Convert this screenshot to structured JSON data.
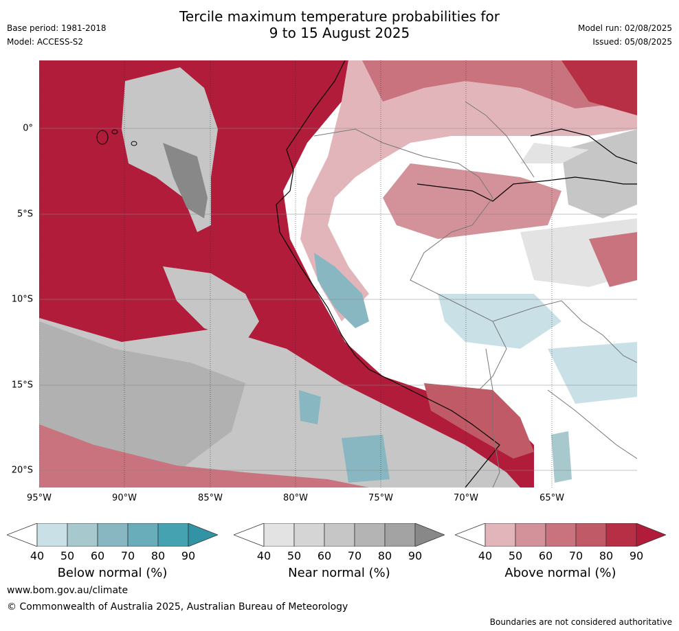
{
  "header": {
    "title_line1": "Tercile maximum temperature probabilities for",
    "title_line2": "9 to 15 August 2025",
    "base_period": "Base period: 1981-2018",
    "model": "Model: ACCESS-S2",
    "model_run": "Model run: 02/08/2025",
    "issued": "Issued: 05/08/2025"
  },
  "map": {
    "lat_labels": [
      "0°",
      "5°S",
      "10°S",
      "15°S",
      "20°S"
    ],
    "lon_labels": [
      "95°W",
      "90°W",
      "85°W",
      "80°W",
      "75°W",
      "70°W",
      "65°W"
    ]
  },
  "legends": [
    {
      "label": "Below normal (%)",
      "ticks": [
        "40",
        "50",
        "60",
        "70",
        "80",
        "90"
      ],
      "colors": [
        "#ffffff",
        "#c9e1e6",
        "#a7c9cd",
        "#88b7c1",
        "#6aadba",
        "#45a2b1",
        "#3193a4"
      ]
    },
    {
      "label": "Near normal (%)",
      "ticks": [
        "40",
        "50",
        "60",
        "70",
        "80",
        "90"
      ],
      "colors": [
        "#ffffff",
        "#e3e3e3",
        "#d5d5d5",
        "#c6c6c6",
        "#b4b4b4",
        "#a3a3a3",
        "#888888"
      ]
    },
    {
      "label": "Above normal (%)",
      "ticks": [
        "40",
        "50",
        "60",
        "70",
        "80",
        "90"
      ],
      "colors": [
        "#ffffff",
        "#e2b5bb",
        "#d39199",
        "#c9737e",
        "#c15a67",
        "#b62f44",
        "#b01c3a"
      ]
    }
  ],
  "footer": {
    "url": "www.bom.gov.au/climate",
    "copyright": "© Commonwealth of Australia 2025, Australian Bureau of Meteorology",
    "note": "Boundaries are not considered authoritative"
  }
}
